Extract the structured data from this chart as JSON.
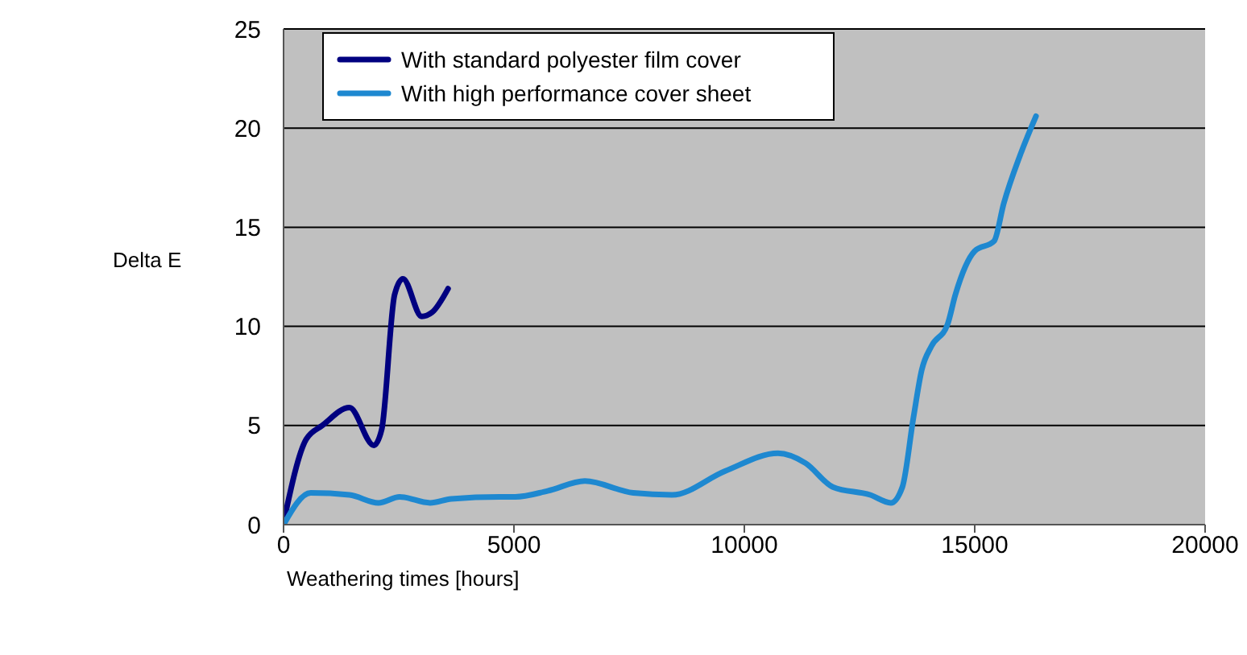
{
  "chart_data": {
    "type": "line",
    "xlabel": "Weathering times [hours]",
    "ylabel": "Delta E",
    "xlim": [
      0,
      20000
    ],
    "xticks": [
      0,
      5000,
      10000,
      15000,
      20000
    ],
    "ylim": [
      0,
      25
    ],
    "yticks": [
      0,
      5,
      10,
      15,
      20,
      25
    ],
    "grid": "y",
    "legend": "top left",
    "marker": "none",
    "line_style": "solid",
    "series": [
      {
        "name": "With standard polyester film cover",
        "color": "#000080",
        "x": [
          0,
          490,
          840,
          1430,
          1960,
          2130,
          2410,
          2590,
          3000,
          3220,
          3570
        ],
        "values": [
          0.1,
          4.3,
          5.0,
          5.9,
          4.0,
          4.8,
          11.6,
          12.4,
          10.5,
          10.7,
          11.9
        ]
      },
      {
        "name": "With high performance cover sheet",
        "color": "#1e88d0",
        "x": [
          0,
          590,
          1430,
          2060,
          2520,
          3180,
          3640,
          4690,
          5030,
          5730,
          6540,
          7590,
          8430,
          9580,
          10730,
          11330,
          11920,
          12730,
          13180,
          13430,
          13670,
          13850,
          14060,
          14410,
          14580,
          15000,
          15420,
          15630,
          15980,
          16330
        ],
        "values": [
          0,
          1.6,
          1.5,
          1.1,
          1.4,
          1.1,
          1.3,
          1.4,
          1.4,
          1.7,
          2.2,
          1.6,
          1.5,
          2.7,
          3.6,
          3.1,
          1.9,
          1.5,
          1.1,
          1.9,
          5.4,
          7.8,
          9.0,
          10.1,
          11.6,
          13.8,
          14.3,
          16.2,
          18.6,
          20.6
        ]
      }
    ]
  }
}
